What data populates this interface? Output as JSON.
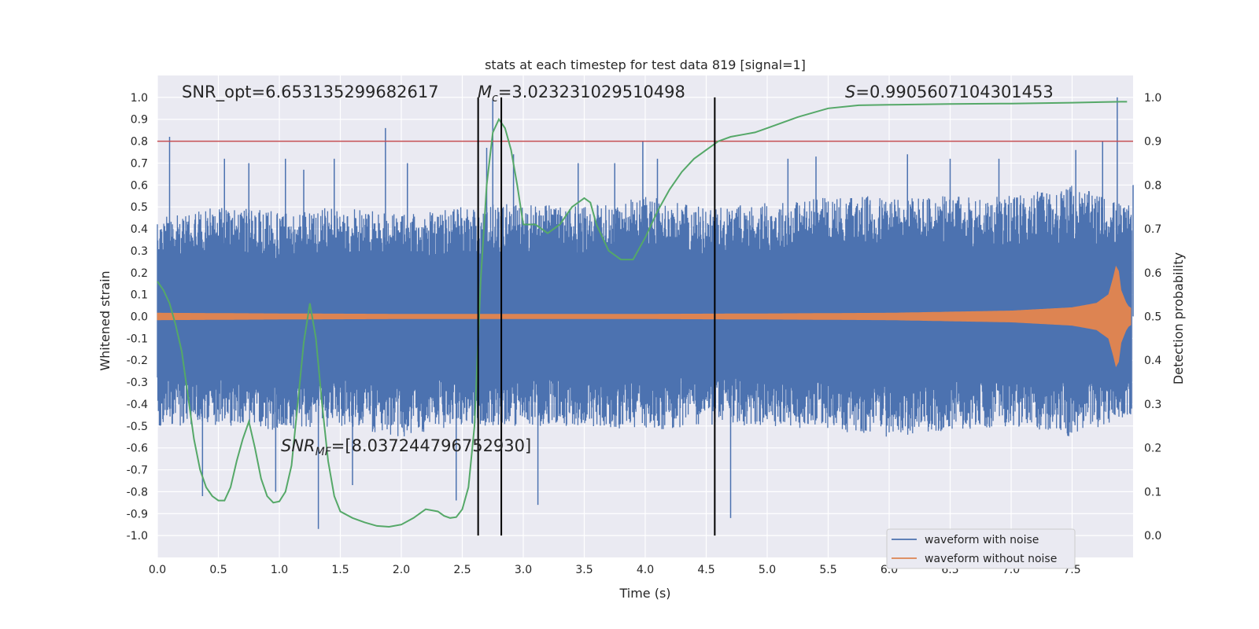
{
  "chart_data": {
    "type": "line",
    "title": "stats at each timestep for test data 819 [signal=1]",
    "xlabel": "Time (s)",
    "ylabel_left": "Whitened strain",
    "ylabel_right": "Detection probability",
    "xlim": [
      0.0,
      8.0
    ],
    "ylim_left": [
      -1.1,
      1.1
    ],
    "ylim_right": [
      -0.05,
      1.05
    ],
    "x_ticks": [
      "0.0",
      "0.5",
      "1.0",
      "1.5",
      "2.0",
      "2.5",
      "3.0",
      "3.5",
      "4.0",
      "4.5",
      "5.0",
      "5.5",
      "6.0",
      "6.5",
      "7.0",
      "7.5"
    ],
    "y_ticks_left": [
      "-1.0",
      "-0.9",
      "-0.8",
      "-0.7",
      "-0.6",
      "-0.5",
      "-0.4",
      "-0.3",
      "-0.2",
      "-0.1",
      "0.0",
      "0.1",
      "0.2",
      "0.3",
      "0.4",
      "0.5",
      "0.6",
      "0.7",
      "0.8",
      "0.9",
      "1.0"
    ],
    "y_ticks_right": [
      "0.0",
      "0.1",
      "0.2",
      "0.3",
      "0.4",
      "0.5",
      "0.6",
      "0.7",
      "0.8",
      "0.9",
      "1.0"
    ],
    "grid": true,
    "legend_position": "lower-right",
    "colors": {
      "background": "#eaeaf2",
      "grid": "#ffffff",
      "noisy": "#4c72b0",
      "clean": "#dd8452",
      "probability": "#55a868",
      "threshold": "#c44e52",
      "markers": "#000000"
    },
    "annotations": {
      "snr_opt": "SNR_opt=6.653135299682617",
      "mc_symbol": "M",
      "mc_subscript": "c",
      "mc_value": "=3.023231029510498",
      "s_symbol": "S",
      "s_value": "=0.9905607104301453",
      "snr_mf_symbol": "SNR",
      "snr_mf_subscript": "MF",
      "snr_mf_value": "=[8.037244796752930]"
    },
    "series": [
      {
        "name": "waveform with noise",
        "axis": "left",
        "color": "#4c72b0",
        "envelope_upper": [
          [
            0.0,
            0.45
          ],
          [
            0.5,
            0.5
          ],
          [
            1.0,
            0.48
          ],
          [
            1.5,
            0.5
          ],
          [
            2.0,
            0.47
          ],
          [
            2.5,
            0.5
          ],
          [
            3.0,
            0.52
          ],
          [
            3.5,
            0.5
          ],
          [
            4.0,
            0.55
          ],
          [
            4.5,
            0.5
          ],
          [
            5.0,
            0.52
          ],
          [
            5.5,
            0.55
          ],
          [
            6.0,
            0.55
          ],
          [
            6.5,
            0.55
          ],
          [
            7.0,
            0.55
          ],
          [
            7.5,
            0.6
          ],
          [
            8.0,
            0.5
          ]
        ],
        "envelope_lower": [
          [
            0.0,
            -0.5
          ],
          [
            0.5,
            -0.5
          ],
          [
            1.0,
            -0.52
          ],
          [
            1.5,
            -0.5
          ],
          [
            2.0,
            -0.55
          ],
          [
            2.5,
            -0.5
          ],
          [
            3.0,
            -0.5
          ],
          [
            3.5,
            -0.5
          ],
          [
            4.0,
            -0.52
          ],
          [
            4.5,
            -0.5
          ],
          [
            5.0,
            -0.5
          ],
          [
            5.5,
            -0.52
          ],
          [
            6.0,
            -0.55
          ],
          [
            6.5,
            -0.52
          ],
          [
            7.0,
            -0.5
          ],
          [
            7.5,
            -0.55
          ],
          [
            8.0,
            -0.45
          ]
        ],
        "peaks": [
          [
            0.1,
            0.82
          ],
          [
            0.37,
            -0.82
          ],
          [
            0.55,
            0.72
          ],
          [
            0.75,
            0.7
          ],
          [
            0.97,
            -0.8
          ],
          [
            1.05,
            0.72
          ],
          [
            1.2,
            0.67
          ],
          [
            1.32,
            -0.97
          ],
          [
            1.45,
            0.72
          ],
          [
            1.6,
            -0.77
          ],
          [
            1.87,
            0.86
          ],
          [
            2.05,
            0.7
          ],
          [
            2.45,
            -0.84
          ],
          [
            2.7,
            0.77
          ],
          [
            2.75,
            0.99
          ],
          [
            2.92,
            0.74
          ],
          [
            3.12,
            -0.86
          ],
          [
            3.45,
            0.7
          ],
          [
            3.75,
            0.7
          ],
          [
            3.98,
            0.8
          ],
          [
            4.1,
            0.72
          ],
          [
            4.7,
            -0.92
          ],
          [
            5.17,
            0.72
          ],
          [
            5.4,
            0.73
          ],
          [
            6.15,
            0.74
          ],
          [
            6.5,
            0.72
          ],
          [
            6.9,
            0.72
          ],
          [
            7.53,
            0.76
          ],
          [
            7.75,
            0.8
          ],
          [
            7.87,
            1.0
          ],
          [
            8.0,
            0.6
          ]
        ]
      },
      {
        "name": "waveform without noise",
        "axis": "left",
        "color": "#dd8452",
        "envelope": [
          [
            0.0,
            0.015
          ],
          [
            1.0,
            0.012
          ],
          [
            2.0,
            0.01
          ],
          [
            3.0,
            0.01
          ],
          [
            4.0,
            0.01
          ],
          [
            5.0,
            0.012
          ],
          [
            6.0,
            0.015
          ],
          [
            6.5,
            0.02
          ],
          [
            7.0,
            0.025
          ],
          [
            7.5,
            0.04
          ],
          [
            7.7,
            0.06
          ],
          [
            7.8,
            0.1
          ],
          [
            7.84,
            0.18
          ],
          [
            7.87,
            0.25
          ],
          [
            7.9,
            0.12
          ],
          [
            7.95,
            0.05
          ],
          [
            8.0,
            0.03
          ]
        ]
      },
      {
        "name": "",
        "axis": "right",
        "color": "#55a868",
        "points": [
          [
            0.0,
            0.58
          ],
          [
            0.05,
            0.56
          ],
          [
            0.1,
            0.53
          ],
          [
            0.15,
            0.48
          ],
          [
            0.2,
            0.42
          ],
          [
            0.25,
            0.32
          ],
          [
            0.3,
            0.22
          ],
          [
            0.35,
            0.15
          ],
          [
            0.4,
            0.11
          ],
          [
            0.45,
            0.09
          ],
          [
            0.5,
            0.08
          ],
          [
            0.55,
            0.08
          ],
          [
            0.6,
            0.11
          ],
          [
            0.65,
            0.17
          ],
          [
            0.7,
            0.22
          ],
          [
            0.75,
            0.26
          ],
          [
            0.8,
            0.2
          ],
          [
            0.85,
            0.13
          ],
          [
            0.9,
            0.09
          ],
          [
            0.95,
            0.075
          ],
          [
            1.0,
            0.078
          ],
          [
            1.05,
            0.1
          ],
          [
            1.1,
            0.16
          ],
          [
            1.15,
            0.3
          ],
          [
            1.2,
            0.44
          ],
          [
            1.25,
            0.53
          ],
          [
            1.3,
            0.45
          ],
          [
            1.35,
            0.3
          ],
          [
            1.4,
            0.17
          ],
          [
            1.45,
            0.09
          ],
          [
            1.5,
            0.055
          ],
          [
            1.6,
            0.04
          ],
          [
            1.7,
            0.03
          ],
          [
            1.8,
            0.022
          ],
          [
            1.9,
            0.02
          ],
          [
            2.0,
            0.025
          ],
          [
            2.1,
            0.04
          ],
          [
            2.2,
            0.06
          ],
          [
            2.3,
            0.055
          ],
          [
            2.35,
            0.045
          ],
          [
            2.4,
            0.04
          ],
          [
            2.45,
            0.042
          ],
          [
            2.5,
            0.06
          ],
          [
            2.55,
            0.11
          ],
          [
            2.6,
            0.25
          ],
          [
            2.65,
            0.58
          ],
          [
            2.7,
            0.8
          ],
          [
            2.75,
            0.92
          ],
          [
            2.8,
            0.95
          ],
          [
            2.85,
            0.93
          ],
          [
            2.9,
            0.88
          ],
          [
            2.95,
            0.8
          ],
          [
            3.0,
            0.71
          ],
          [
            3.05,
            0.71
          ],
          [
            3.1,
            0.71
          ],
          [
            3.2,
            0.69
          ],
          [
            3.3,
            0.71
          ],
          [
            3.4,
            0.75
          ],
          [
            3.5,
            0.77
          ],
          [
            3.55,
            0.76
          ],
          [
            3.6,
            0.71
          ],
          [
            3.7,
            0.65
          ],
          [
            3.8,
            0.63
          ],
          [
            3.9,
            0.63
          ],
          [
            4.0,
            0.68
          ],
          [
            4.1,
            0.74
          ],
          [
            4.2,
            0.79
          ],
          [
            4.3,
            0.83
          ],
          [
            4.4,
            0.86
          ],
          [
            4.5,
            0.88
          ],
          [
            4.6,
            0.9
          ],
          [
            4.7,
            0.91
          ],
          [
            4.8,
            0.915
          ],
          [
            4.9,
            0.92
          ],
          [
            5.0,
            0.93
          ],
          [
            5.25,
            0.955
          ],
          [
            5.5,
            0.975
          ],
          [
            5.75,
            0.982
          ],
          [
            6.0,
            0.983
          ],
          [
            6.5,
            0.985
          ],
          [
            7.0,
            0.986
          ],
          [
            7.5,
            0.988
          ],
          [
            7.9,
            0.99
          ],
          [
            7.95,
            0.99
          ]
        ]
      }
    ],
    "threshold_line": {
      "axis": "right",
      "value": 0.9
    },
    "vertical_markers": [
      2.63,
      2.82,
      4.57
    ],
    "vertical_marker_range": [
      0.0,
      1.0
    ]
  }
}
